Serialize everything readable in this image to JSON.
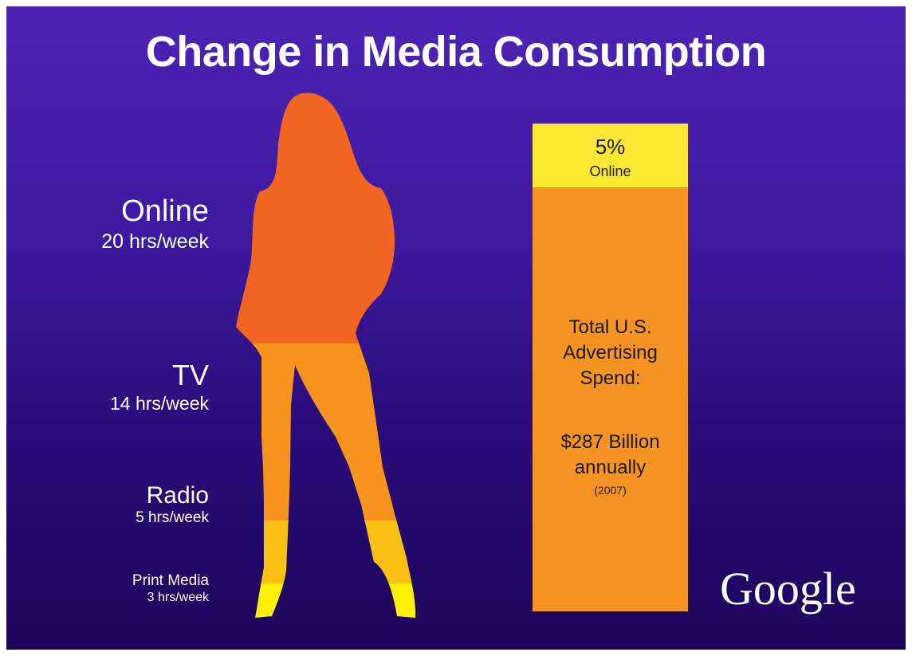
{
  "chart_data": {
    "type": "bar",
    "title": "Change in Media Consumption",
    "media_consumption": [
      {
        "name": "Online",
        "hours_label": "20 hrs/week",
        "hours_per_week": 20,
        "color": "#f26522"
      },
      {
        "name": "TV",
        "hours_label": "14 hrs/week",
        "hours_per_week": 14,
        "color": "#f7941e"
      },
      {
        "name": "Radio",
        "hours_label": "5 hrs/week",
        "hours_per_week": 5,
        "color": "#f9c114"
      },
      {
        "name": "Print Media",
        "hours_label": "3 hrs/week",
        "hours_per_week": 3,
        "color": "#fff200"
      }
    ],
    "ad_spend": {
      "online_pct_label": "5%",
      "online_label": "Online",
      "online_pct": 5,
      "total_label": "Total U.S. Advertising Spend:",
      "amount_label": "$287 Billion annually",
      "year_label": "(2007)",
      "colors": {
        "online": "#fbe832",
        "rest": "#f59423"
      }
    }
  },
  "logo": "Google",
  "colors": {
    "background_top": "#4d23b4",
    "background_bottom": "#1d055a"
  }
}
